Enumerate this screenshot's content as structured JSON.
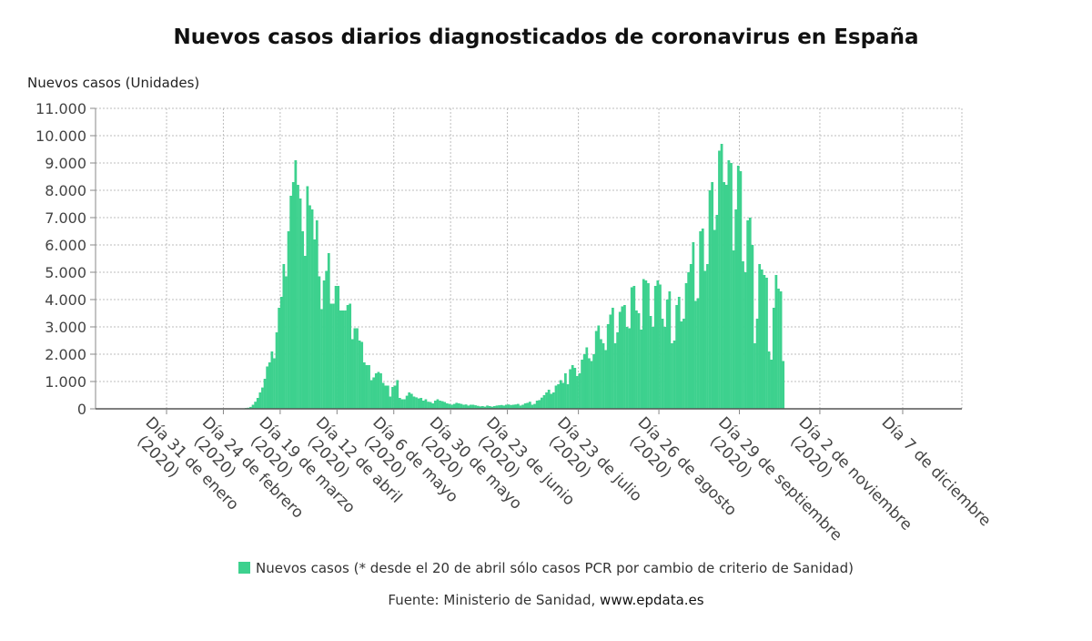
{
  "header": {
    "title": "Nuevos casos diarios diagnosticados de coronavirus en España"
  },
  "chart_data": {
    "type": "bar",
    "title": "Nuevos casos diarios diagnosticados de coronavirus en España",
    "ylabel": "Nuevos casos (Unidades)",
    "ylim": [
      0,
      11000
    ],
    "yticks": [
      "0",
      "1.000",
      "2.000",
      "3.000",
      "4.000",
      "5.000",
      "6.000",
      "7.000",
      "8.000",
      "9.000",
      "10.000",
      "11.000"
    ],
    "xtick_labels": [
      [
        "Día 31 de enero",
        "(2020)"
      ],
      [
        "Día 24 de febrero",
        "(2020)"
      ],
      [
        "Día 19 de marzo",
        "(2020)"
      ],
      [
        "Día 12 de abril",
        "(2020)"
      ],
      [
        "Día 6 de mayo",
        "(2020)"
      ],
      [
        "Día 30 de mayo",
        "(2020)"
      ],
      [
        "Día 23 de junio",
        "(2020)"
      ],
      [
        "Día 23 de julio",
        "(2020)"
      ],
      [
        "Día 26 de agosto",
        "(2020)"
      ],
      [
        "Día 29 de septiembre",
        "(2020)"
      ],
      [
        "Día 2 de noviembre",
        "(2020)"
      ],
      [
        "Día 7 de diciembre",
        ""
      ]
    ],
    "xtick_days": [
      30,
      54,
      78,
      102,
      126,
      150,
      174,
      204,
      238,
      272,
      306,
      341
    ],
    "x_start": "2020-01-01",
    "x_end": "2020-12-31",
    "grid": true,
    "color": "#3dd18e",
    "series": [
      {
        "name": "Nuevos casos (* desde el 20 de abril sólo casos PCR por cambio de criterio de Sanidad)",
        "daily_start": "2020-01-31",
        "values": [
          1,
          0,
          0,
          0,
          0,
          0,
          0,
          0,
          1,
          0,
          0,
          0,
          0,
          0,
          0,
          0,
          0,
          0,
          0,
          0,
          0,
          0,
          0,
          0,
          1,
          1,
          2,
          5,
          3,
          6,
          13,
          15,
          12,
          29,
          40,
          70,
          150,
          260,
          400,
          600,
          780,
          1100,
          1550,
          1700,
          2100,
          1850,
          2800,
          3700,
          4100,
          5300,
          4850,
          6500,
          7800,
          8300,
          9100,
          8200,
          7700,
          6500,
          5600,
          8150,
          7450,
          7300,
          6200,
          6900,
          4850,
          3650,
          4700,
          5050,
          5700,
          3850,
          3850,
          4500,
          4500,
          3600,
          3600,
          3600,
          3800,
          3850,
          2550,
          2950,
          2950,
          2500,
          2450,
          1700,
          1600,
          1600,
          1050,
          1150,
          1300,
          1350,
          1300,
          950,
          850,
          850,
          450,
          800,
          850,
          1050,
          400,
          350,
          350,
          480,
          600,
          550,
          450,
          420,
          380,
          400,
          300,
          350,
          260,
          250,
          200,
          300,
          350,
          300,
          280,
          250,
          200,
          180,
          150,
          180,
          220,
          200,
          180,
          150,
          160,
          120,
          150,
          150,
          130,
          110,
          90,
          100,
          80,
          120,
          100,
          80,
          100,
          120,
          130,
          140,
          120,
          150,
          160,
          140,
          150,
          160,
          180,
          120,
          150,
          200,
          220,
          260,
          150,
          180,
          300,
          320,
          410,
          500,
          600,
          700,
          550,
          600,
          850,
          900,
          1050,
          950,
          1300,
          900,
          1450,
          1600,
          1500,
          1200,
          1300,
          1800,
          2000,
          2250,
          1850,
          1750,
          2000,
          2850,
          3050,
          2550,
          2400,
          2150,
          3100,
          3450,
          3700,
          2400,
          2800,
          3550,
          3750,
          3800,
          3000,
          2950,
          4450,
          4500,
          3600,
          3500,
          2900,
          4750,
          4700,
          4600,
          3400,
          3000,
          4500,
          4700,
          4550,
          3300,
          3000,
          4000,
          4300,
          2400,
          2500,
          3800,
          4100,
          3200,
          3300,
          4600,
          5000,
          5300,
          6100,
          3950,
          4050,
          6500,
          6600,
          5050,
          5300,
          8000,
          8300,
          6550,
          7100,
          9450,
          9700,
          8300,
          8200,
          9100,
          9000,
          5800,
          7300,
          8900,
          8700,
          5400,
          5000,
          6900,
          7000,
          6000,
          2400,
          3300,
          5300,
          5100,
          4900,
          4800,
          2100,
          1800,
          3700,
          4900,
          4400,
          4300,
          1750
        ]
      }
    ],
    "legend": "Nuevos casos (* desde el 20 de abril sólo casos PCR por cambio de criterio de Sanidad)"
  },
  "footer": {
    "source_prefix": "Fuente: Ministerio de Sanidad, ",
    "source_site": "www.epdata.es"
  }
}
